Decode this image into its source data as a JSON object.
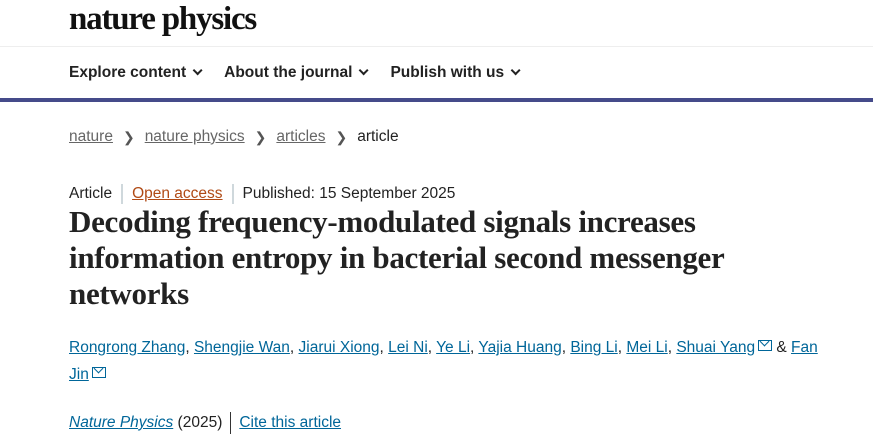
{
  "header": {
    "logo": "nature physics"
  },
  "nav": {
    "items": [
      {
        "label": "Explore content"
      },
      {
        "label": "About the journal"
      },
      {
        "label": "Publish with us"
      }
    ]
  },
  "breadcrumb": [
    "nature",
    "nature physics",
    "articles",
    "article"
  ],
  "meta": {
    "type": "Article",
    "access": "Open access",
    "published": "Published: 15 September 2025"
  },
  "title_lines": [
    "Decoding frequency-modulated signals increases",
    "information entropy in bacterial second messenger",
    "networks"
  ],
  "authors": [
    "Rongrong Zhang",
    "Shengjie Wan",
    "Jiarui Xiong",
    "Lei Ni",
    "Ye Li",
    "Yajia Huang",
    "Bing Li",
    "Mei Li",
    "Shuai Yang",
    "Fan Jin"
  ],
  "authors_conj": "&",
  "citation": {
    "journal": "Nature Physics",
    "year": "(2025)",
    "cite": "Cite this article"
  },
  "colors": {
    "nav_border": "#454b8a",
    "link": "#006699",
    "open_access": "#b04a15"
  }
}
